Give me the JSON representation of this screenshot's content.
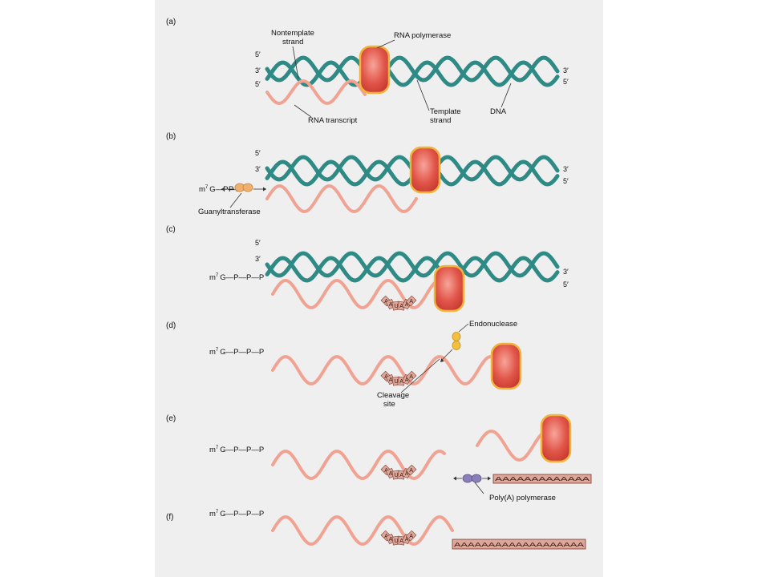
{
  "colors": {
    "panel": "#efefef",
    "dna_strand": "#2f8a85",
    "rna_strand": "#f0a392",
    "polymerase_fill": "#e2564a",
    "polymerase_rim": "#f0b43c",
    "guanyltransferase": "#f0b070",
    "endonuclease": "#f2c040",
    "polyA_polymerase": "#8a7fb8",
    "aauaaa_box": "#dda69a"
  },
  "panels": {
    "a": {
      "letter": "(a)"
    },
    "b": {
      "letter": "(b)"
    },
    "c": {
      "letter": "(c)"
    },
    "d": {
      "letter": "(d)"
    },
    "e": {
      "letter": "(e)"
    },
    "f": {
      "letter": "(f)"
    }
  },
  "ends": {
    "five": "5′",
    "three": "3′"
  },
  "labels": {
    "nontemplate_1": "Nontemplate",
    "nontemplate_2": "strand",
    "rna_polymerase": "RNA polymerase",
    "template_1": "Template",
    "template_2": "strand",
    "dna": "DNA",
    "rna_transcript": "RNA transcript",
    "guanyltransferase": "Guanyltransferase",
    "endonuclease": "Endonuclease",
    "cleavage_1": "Cleavage",
    "cleavage_2": "site",
    "polyA_polymerase": "Poly(A) polymerase"
  },
  "cap": {
    "m": "m",
    "sup": "7",
    "chain": "G—P—P—P",
    "chain_partial": "G—P—P"
  },
  "signal": {
    "letters": [
      "A",
      "A",
      "U",
      "A",
      "A",
      "A"
    ]
  },
  "polyA": {
    "e_tail": "AAAAAAAAAAAAA",
    "f_tail": "AAAAAAAAAAAAAAAAAAA"
  }
}
